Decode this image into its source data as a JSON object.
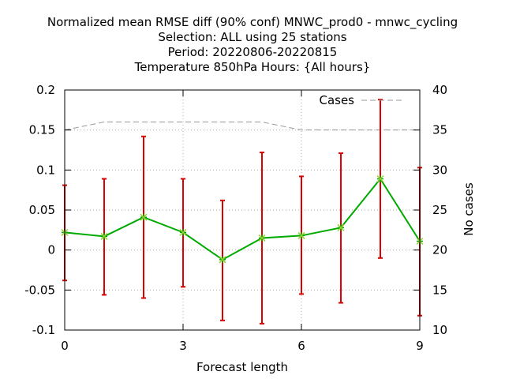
{
  "chart_data": {
    "type": "line",
    "title_lines": [
      "Normalized mean RMSE diff (90% conf) MNWC_prod0 - mnwc_cycling",
      "Selection: ALL using    25 stations",
      "Period: 20220806-20220815",
      "Temperature 850hPa   Hours: {All hours}"
    ],
    "xlabel": "Forecast length",
    "ylabel": "",
    "y2label": "No cases",
    "xlim": [
      0,
      9
    ],
    "ylim": [
      -0.1,
      0.2
    ],
    "y2lim": [
      10,
      40
    ],
    "xticks": [
      0,
      3,
      6,
      9
    ],
    "yticks": [
      -0.1,
      -0.05,
      0,
      0.05,
      0.1,
      0.15,
      0.2
    ],
    "yticklabels": [
      "-0.1",
      "-0.05",
      "0",
      "0.05",
      "0.1",
      "0.15",
      "0.2"
    ],
    "y2ticks": [
      10,
      15,
      20,
      25,
      30,
      35,
      40
    ],
    "grid": true,
    "legend_position": "top-right",
    "colors": {
      "series": "#00aa00",
      "marker": "#99cc33",
      "errorbar": "#dd0000",
      "cases": "#999999",
      "grid": "#aaaaaa"
    },
    "series": [
      {
        "x": [
          0,
          1,
          2,
          3,
          4,
          5,
          6,
          7,
          8,
          9
        ],
        "values": [
          0.022,
          0.017,
          0.041,
          0.022,
          -0.012,
          0.015,
          0.018,
          0.028,
          0.089,
          0.011
        ],
        "err_low": [
          -0.038,
          -0.056,
          -0.06,
          -0.046,
          -0.088,
          -0.092,
          -0.055,
          -0.066,
          -0.01,
          -0.082
        ],
        "err_high": [
          0.081,
          0.089,
          0.142,
          0.089,
          0.062,
          0.122,
          0.092,
          0.121,
          0.188,
          0.103
        ]
      },
      {
        "name": "Cases",
        "axis": "y2",
        "x": [
          0,
          1,
          2,
          3,
          4,
          5,
          6,
          7,
          8,
          9
        ],
        "values": [
          35,
          36,
          36,
          36,
          36,
          36,
          35,
          35,
          35,
          35
        ]
      }
    ]
  }
}
